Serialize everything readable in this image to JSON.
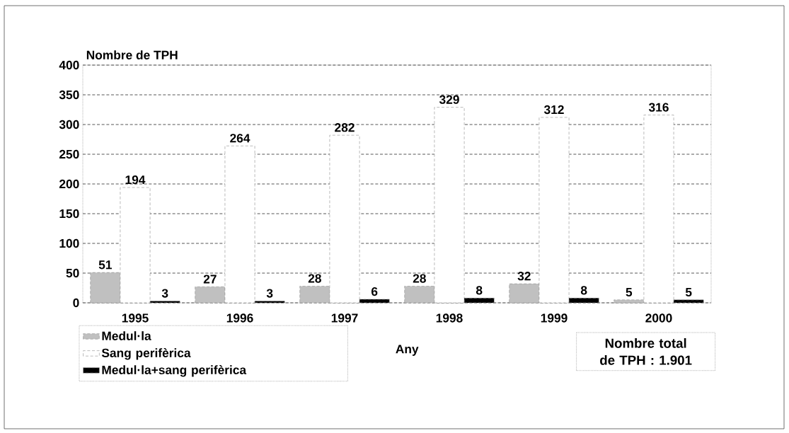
{
  "chart_data": {
    "type": "bar",
    "ylabel": "Nombre de TPH",
    "xlabel": "Any",
    "categories": [
      "1995",
      "1996",
      "1997",
      "1998",
      "1999",
      "2000"
    ],
    "series": [
      {
        "name": "Medul·la",
        "color": "#c0c0c0",
        "values": [
          51,
          27,
          28,
          28,
          32,
          5
        ]
      },
      {
        "name": "Sang perifèrica",
        "color": "#ffffff",
        "values": [
          194,
          264,
          282,
          329,
          312,
          316
        ]
      },
      {
        "name": "Medul·la+sang perifèrica",
        "color": "#000000",
        "values": [
          3,
          3,
          6,
          8,
          8,
          5
        ]
      }
    ],
    "ylim": [
      0,
      400
    ],
    "yticks": [
      0,
      50,
      100,
      150,
      200,
      250,
      300,
      350,
      400
    ],
    "grid": "y",
    "legend": "bottom left",
    "data_labels": true,
    "annotations": [
      "Nombre total de TPH : 1.901"
    ]
  }
}
